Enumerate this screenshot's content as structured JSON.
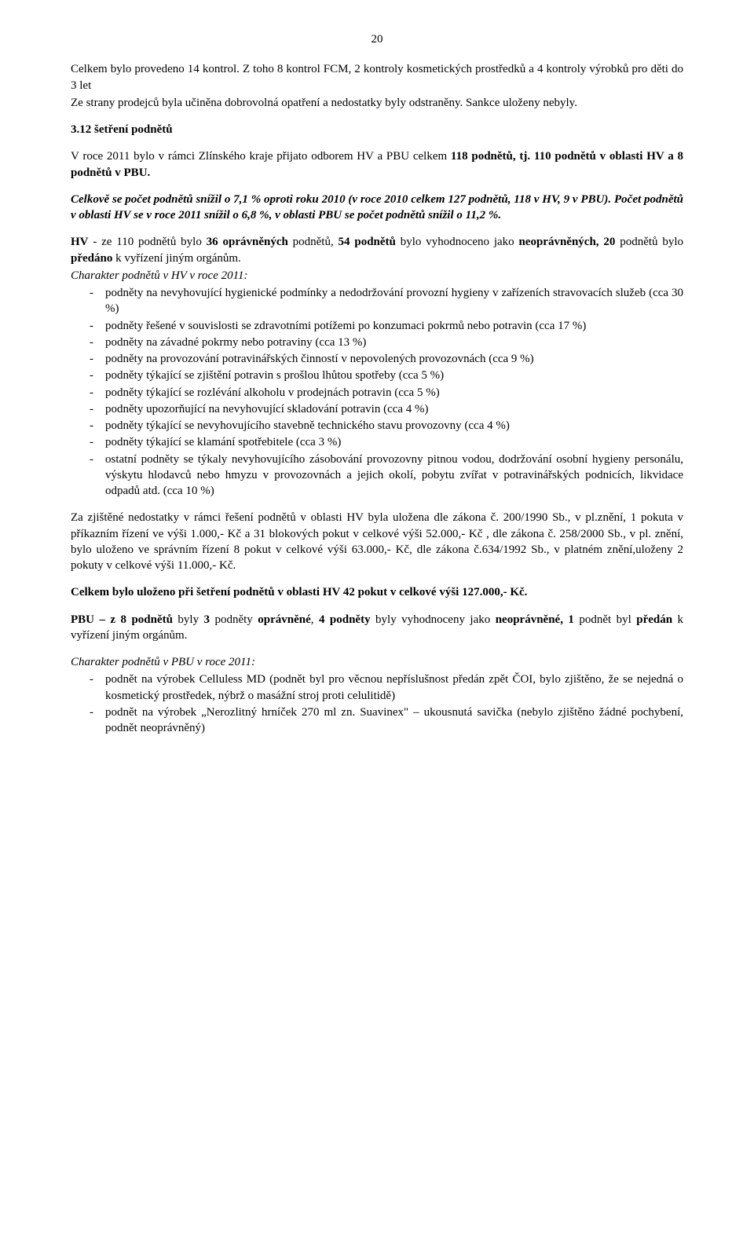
{
  "pageNumber": "20",
  "p1": "Celkem bylo provedeno 14 kontrol.  Z toho 8 kontrol FCM, 2 kontroly kosmetických prostředků a 4 kontroly výrobků pro děti do 3 let",
  "p2": "Ze strany prodejců byla učiněna dobrovolná opatření a nedostatky byly odstraněny. Sankce uloženy nebyly.",
  "h3": "3.12 šetření podnětů",
  "p3a": "V roce 2011 bylo v rámci Zlínského kraje přijato odborem  HV a PBU celkem ",
  "p3b": "118  podnětů, tj. 110 podnětů v oblasti HV a  8  podnětů v PBU.",
  "p4": "Celkově se počet podnětů  snížil  o  7,1  %  oproti roku 2010  (v roce 2010  celkem  127 podnětů, 118 v HV,  9 v PBU). Počet podnětů v oblasti  HV se  v roce  2011 snížil  o 6,8 %, v oblasti  PBU  se počet  podnětů  snížil  o 11,2  %.",
  "p5a_prefix": "HV",
  "p5a": " - ze 110 podnětů bylo ",
  "p5b": "36  oprávněných",
  "p5c": " podnětů, ",
  "p5d": " 54 podnětů",
  "p5e": " bylo vyhodnoceno  jako ",
  "p5f": "neoprávněných, 20",
  "p5g": " podnětů bylo ",
  "p5h": "předáno",
  "p5i": " k vyřízení jiným  orgánům.",
  "p6": "Charakter  podnětů v HV v roce 2011:",
  "hvList": [
    "podněty na nevyhovující hygienické podmínky a nedodržování  provozní  hygieny v zařízeních  stravovacích služeb (cca 30 %)",
    "podněty řešené v souvislosti se zdravotními potížemi po konzumaci  pokrmů  nebo potravin (cca  17  %)",
    "podněty na závadné pokrmy  nebo potraviny (cca 13  %)",
    "podněty na provozování  potravinářských činností v nepovolených  provozovnách (cca 9  %)",
    "podněty týkající se  zjištění potravin s prošlou lhůtou spotřeby (cca 5 %)",
    "podněty  týkající se  rozlévání alkoholu v prodejnách  potravin (cca 5 %)",
    "podněty upozorňující na nevyhovující  skladování potravin (cca 4 %)",
    "podněty týkající se  nevyhovujícího stavebně technického stavu provozovny (cca 4 %)",
    "podněty týkající se  klamání spotřebitele (cca 3 %)",
    "ostatní podněty se týkaly nevyhovujícího zásobování provozovny pitnou vodou, dodržování osobní hygieny personálu, výskytu hlodavců nebo hmyzu v provozovnách a jejich okolí, pobytu zvířat v potravinářských podnicích, likvidace odpadů atd. (cca 10 %)"
  ],
  "p7": "Za zjištěné nedostatky  v rámci  řešení podnětů  v oblasti HV  byla uložena dle zákona č. 200/1990 Sb., v pl.znění, 1 pokuta v příkazním řízení  ve výši 1.000,- Kč  a 31 blokových pokut  v celkové výši  52.000,- Kč , dle zákona č. 258/2000 Sb., v pl. znění, bylo uloženo ve správním řízení 8  pokut  v celkové výši 63.000,- Kč, dle zákona  č.634/1992 Sb., v platném znění,uloženy 2 pokuty  v celkové výši 11.000,- Kč.",
  "p8": "Celkem bylo uloženo  při  šetření podnětů  v oblasti HV  42 pokut v celkové výši 127.000,- Kč.",
  "p9a": "PBU – z 8 podnětů",
  "p9a2": " byly ",
  "p9b": "3",
  "p9c": " podněty ",
  "p9d": "oprávněné",
  "p9e": ", ",
  "p9f": "4 podněty",
  "p9g": " byly vyhodnoceny jako ",
  "p9h": "neoprávněné, 1",
  "p9i": " podnět byl ",
  "p9j": "předán",
  "p9k": " k vyřízení jiným  orgánům.",
  "p10": "Charakter  podnětů v PBU v roce 2011:",
  "pbuList": [
    "podnět na výrobek Celluless MD (podnět byl pro věcnou nepříslušnost předán zpět ČOI,  bylo zjištěno, že se nejedná o kosmetický prostředek, nýbrž o masážní stroj proti celulitidě)",
    "podnět na výrobek „Nerozlitný hrníček 270 ml zn.  Suavinex\"  – ukousnutá savička (nebylo zjištěno žádné pochybení, podnět neoprávněný)"
  ]
}
